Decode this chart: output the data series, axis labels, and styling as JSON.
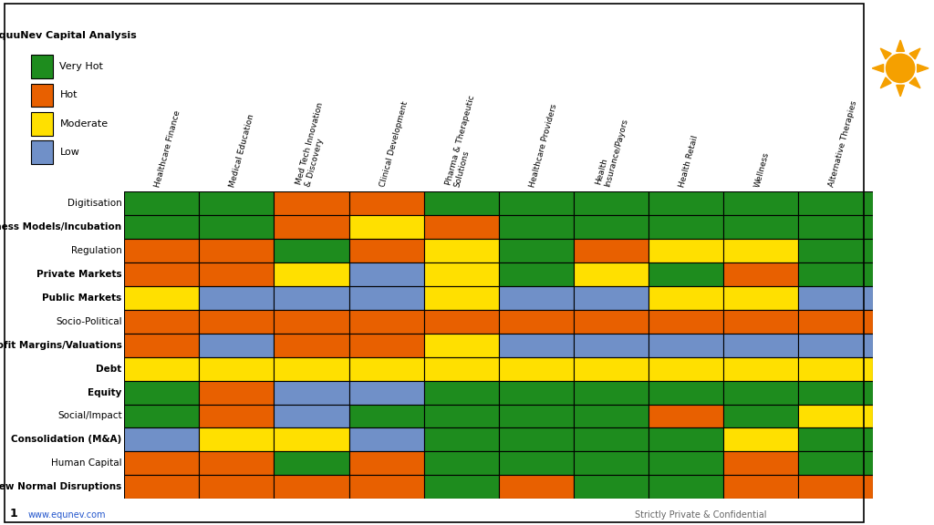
{
  "colors": {
    "G": "#1e8c1e",
    "O": "#e86000",
    "Y": "#ffe000",
    "B": "#7090c8"
  },
  "legend_codes": [
    "G",
    "O",
    "Y",
    "B"
  ],
  "legend_labels": [
    "Very Hot",
    "Hot",
    "Moderate",
    "Low"
  ],
  "columns": [
    "Healthcare Finance",
    "Medical Education",
    "Med Tech Innovation\n& Discovery",
    "Clinical Development",
    "Pharma & Therapeutic\nSolutions",
    "Healthcare Providers",
    "Health\nInsurance/Payors",
    "Health Retail",
    "Wellness",
    "Alternative Therapies"
  ],
  "rows": [
    "Digitisation",
    "New Business Models/Incubation",
    "Regulation",
    "Private Markets",
    "Public Markets",
    "Socio-Political",
    "Profit Margins/Valuations",
    "Debt",
    "Equity",
    "Social/Impact",
    "Consolidation (M&A)",
    "Human Capital",
    "New Normal Disruptions"
  ],
  "row_bold": [
    false,
    true,
    false,
    true,
    true,
    false,
    true,
    true,
    true,
    false,
    true,
    false,
    true
  ],
  "grid": [
    [
      "G",
      "G",
      "O",
      "O",
      "G",
      "G",
      "G",
      "G",
      "G",
      "G"
    ],
    [
      "G",
      "G",
      "O",
      "Y",
      "O",
      "G",
      "G",
      "G",
      "G",
      "G"
    ],
    [
      "O",
      "O",
      "G",
      "O",
      "Y",
      "G",
      "O",
      "Y",
      "Y",
      "G"
    ],
    [
      "O",
      "O",
      "Y",
      "B",
      "Y",
      "G",
      "Y",
      "G",
      "O",
      "G"
    ],
    [
      "Y",
      "B",
      "B",
      "B",
      "Y",
      "B",
      "B",
      "Y",
      "Y",
      "B"
    ],
    [
      "O",
      "O",
      "O",
      "O",
      "O",
      "O",
      "O",
      "O",
      "O",
      "O"
    ],
    [
      "O",
      "B",
      "O",
      "O",
      "Y",
      "B",
      "B",
      "B",
      "B",
      "B"
    ],
    [
      "Y",
      "Y",
      "Y",
      "Y",
      "Y",
      "Y",
      "Y",
      "Y",
      "Y",
      "Y"
    ],
    [
      "G",
      "O",
      "B",
      "B",
      "G",
      "G",
      "G",
      "G",
      "G",
      "G"
    ],
    [
      "G",
      "O",
      "B",
      "G",
      "G",
      "G",
      "G",
      "O",
      "G",
      "Y"
    ],
    [
      "B",
      "Y",
      "Y",
      "B",
      "G",
      "G",
      "G",
      "G",
      "Y",
      "G"
    ],
    [
      "O",
      "O",
      "G",
      "O",
      "G",
      "G",
      "G",
      "G",
      "O",
      "G"
    ],
    [
      "O",
      "O",
      "O",
      "O",
      "G",
      "O",
      "G",
      "G",
      "O",
      "O"
    ]
  ],
  "bg_color": "#ffffff",
  "border_color": "#000000",
  "legend_title": "EquuNev Capital Analysis",
  "footer_num": "1",
  "footer_website": "www.equnev.com",
  "footer_right": "Strictly Private & Confidential",
  "sun_color": "#f5a000"
}
